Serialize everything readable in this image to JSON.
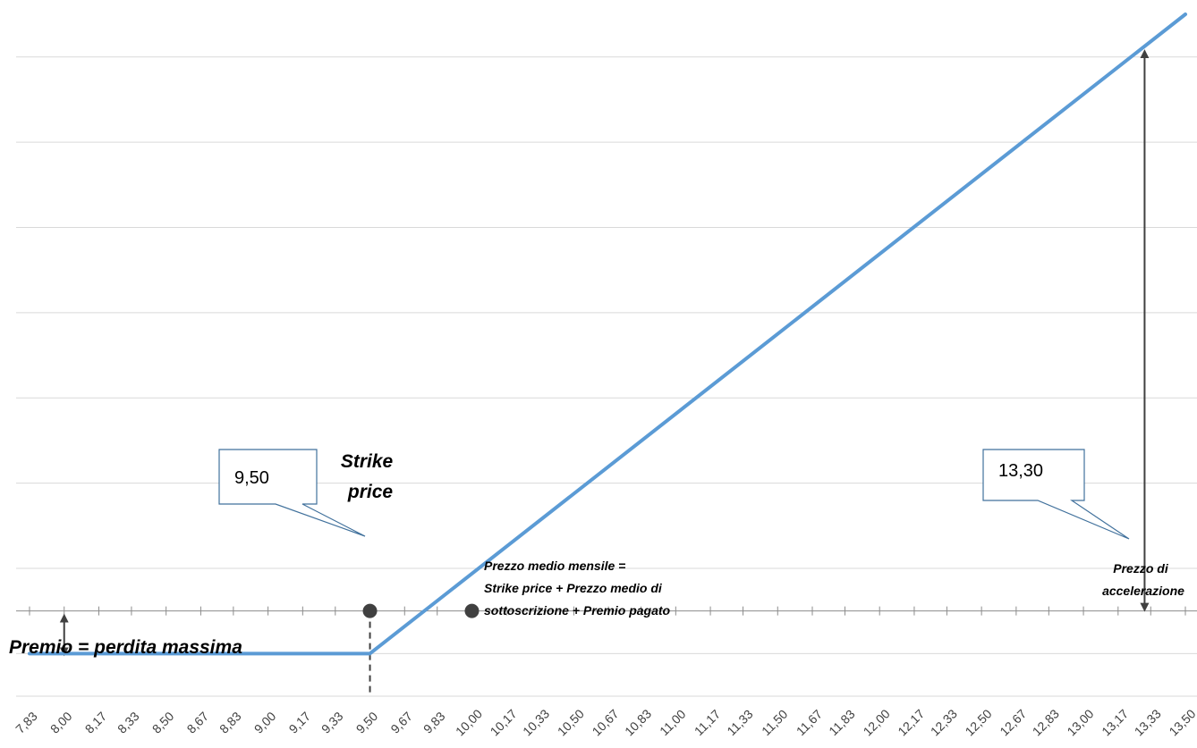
{
  "chart_data": {
    "type": "line",
    "title": "",
    "xlabel": "",
    "ylabel": "",
    "x": [
      "7,83",
      "8,00",
      "8,17",
      "8,33",
      "8,50",
      "8,67",
      "8,83",
      "9,00",
      "9,17",
      "9,33",
      "9,50",
      "9,67",
      "9,83",
      "10,00",
      "10,17",
      "10,33",
      "10,50",
      "10,67",
      "10,83",
      "11,00",
      "11,17",
      "11,33",
      "11,50",
      "11,67",
      "11,83",
      "12,00",
      "12,17",
      "12,33",
      "12,50",
      "12,67",
      "12,83",
      "13,00",
      "13,17",
      "13,33",
      "13,50"
    ],
    "x_values": [
      7.83,
      8.0,
      8.17,
      8.33,
      8.5,
      8.67,
      8.83,
      9.0,
      9.17,
      9.33,
      9.5,
      9.67,
      9.83,
      10.0,
      10.17,
      10.33,
      10.5,
      10.67,
      10.83,
      11.0,
      11.17,
      11.33,
      11.5,
      11.67,
      11.83,
      12.0,
      12.17,
      12.33,
      12.5,
      12.67,
      12.83,
      13.0,
      13.17,
      13.33,
      13.5
    ],
    "series": [
      {
        "color": "#5b9bd5",
        "points": [
          {
            "x": 7.83,
            "y": -0.5
          },
          {
            "x": 9.5,
            "y": -0.5
          },
          {
            "x": 13.5,
            "y": 7.0
          }
        ]
      }
    ],
    "ylim": [
      -1.0,
      7.0
    ],
    "y_gridlines": [
      -1.0,
      -0.5,
      0.0,
      0.5,
      1.0,
      1.5,
      2.0,
      2.5,
      3.0,
      3.5,
      4.0,
      4.5,
      5.0,
      5.5,
      6.0,
      6.5,
      7.0
    ],
    "y_gridline_values": [
      -1.0,
      -0.5,
      0.5,
      1.5,
      2.5,
      3.5,
      4.5,
      5.5,
      6.5
    ],
    "show_grid": true,
    "y_tick_labels_shown": false,
    "markers": [
      {
        "x": 9.5,
        "y": 0.0,
        "color": "#404040"
      },
      {
        "x": 10.0,
        "y": 0.0,
        "color": "#404040"
      }
    ],
    "strike_guide": {
      "x": 9.5,
      "y_from": 0.0,
      "y_to": -1.0,
      "style": "dashed"
    },
    "premium_arrow": {
      "x": 8.0,
      "y_from": -0.5,
      "y_to": 0.0
    },
    "accel_arrow": {
      "x": 13.3,
      "y_from": 0.0,
      "y_to": 6.6
    },
    "annotations": {
      "strike_callout": "9,50",
      "strike_label_line1": "Strike",
      "strike_label_line2": "price",
      "accel_callout": "13,30",
      "avg_price_line1": "Prezzo medio mensile =",
      "avg_price_line2": "Strike price + Prezzo medio di",
      "avg_price_line3": "sottoscrizione + Premio pagato",
      "accel_label_line1": "Prezzo di",
      "accel_label_line2": "accelerazione",
      "premium_label": "Premio = perdita massima"
    },
    "colors": {
      "line": "#5b9bd5",
      "grid": "#d9d9d9",
      "axis": "#8c8c8c",
      "marker": "#404040",
      "arrow": "#404040",
      "callout_border": "#41719c"
    }
  }
}
